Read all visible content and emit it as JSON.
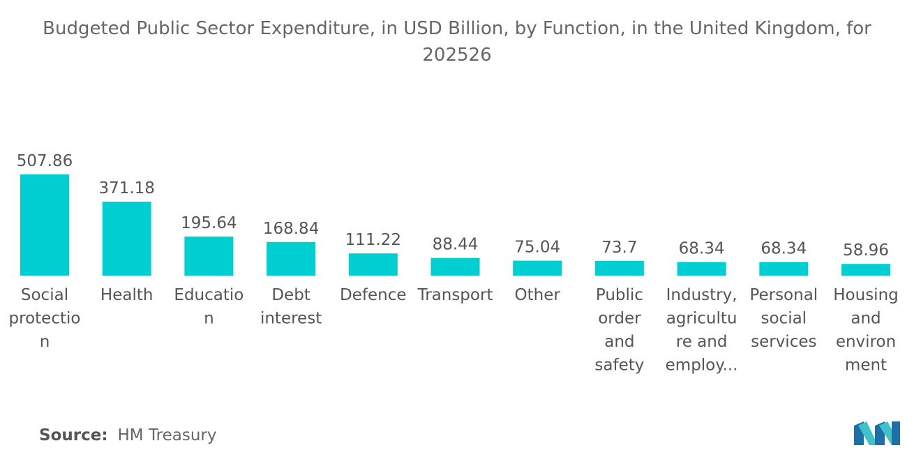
{
  "title_lines": [
    "Budgeted Public Sector Expenditure, in USD Billion, by Function, in the United Kingdom, for",
    "202526"
  ],
  "source_label": "Source:",
  "source_value": "HM Treasury",
  "colors": {
    "bar": "#00ced1",
    "logo_dark": "#1e6fa6",
    "logo_light": "#3fc1c9"
  },
  "chart_data": {
    "type": "bar",
    "title": "Budgeted Public Sector Expenditure, in USD Billion, by Function, in the United Kingdom, for 202526",
    "xlabel": "",
    "ylabel": "",
    "grid": false,
    "legend": "none",
    "ylim": [
      0,
      507.86
    ],
    "categories": [
      {
        "name": "Social protection",
        "lines": [
          "Social",
          "protectio",
          "n"
        ]
      },
      {
        "name": "Health",
        "lines": [
          "Health"
        ]
      },
      {
        "name": "Education",
        "lines": [
          "Educatio",
          "n"
        ]
      },
      {
        "name": "Debt interest",
        "lines": [
          "Debt",
          "interest"
        ]
      },
      {
        "name": "Defence",
        "lines": [
          "Defence"
        ]
      },
      {
        "name": "Transport",
        "lines": [
          "Transport"
        ]
      },
      {
        "name": "Other",
        "lines": [
          "Other"
        ]
      },
      {
        "name": "Public order and safety",
        "lines": [
          "Public",
          "order",
          "and",
          "safety"
        ]
      },
      {
        "name": "Industry, agriculture and employment",
        "lines": [
          "Industry,",
          "agricultu",
          "re and",
          "employ..."
        ]
      },
      {
        "name": "Personal social services",
        "lines": [
          "Personal",
          "social",
          "services"
        ]
      },
      {
        "name": "Housing and environment",
        "lines": [
          "Housing",
          "and",
          "environ",
          "ment"
        ]
      }
    ],
    "values": [
      507.86,
      371.18,
      195.64,
      168.84,
      111.22,
      88.44,
      75.04,
      73.7,
      68.34,
      68.34,
      58.96
    ],
    "value_labels": [
      "507.86",
      "371.18",
      "195.64",
      "168.84",
      "111.22",
      "88.44",
      "75.04",
      "73.7",
      "68.34",
      "68.34",
      "58.96"
    ]
  }
}
